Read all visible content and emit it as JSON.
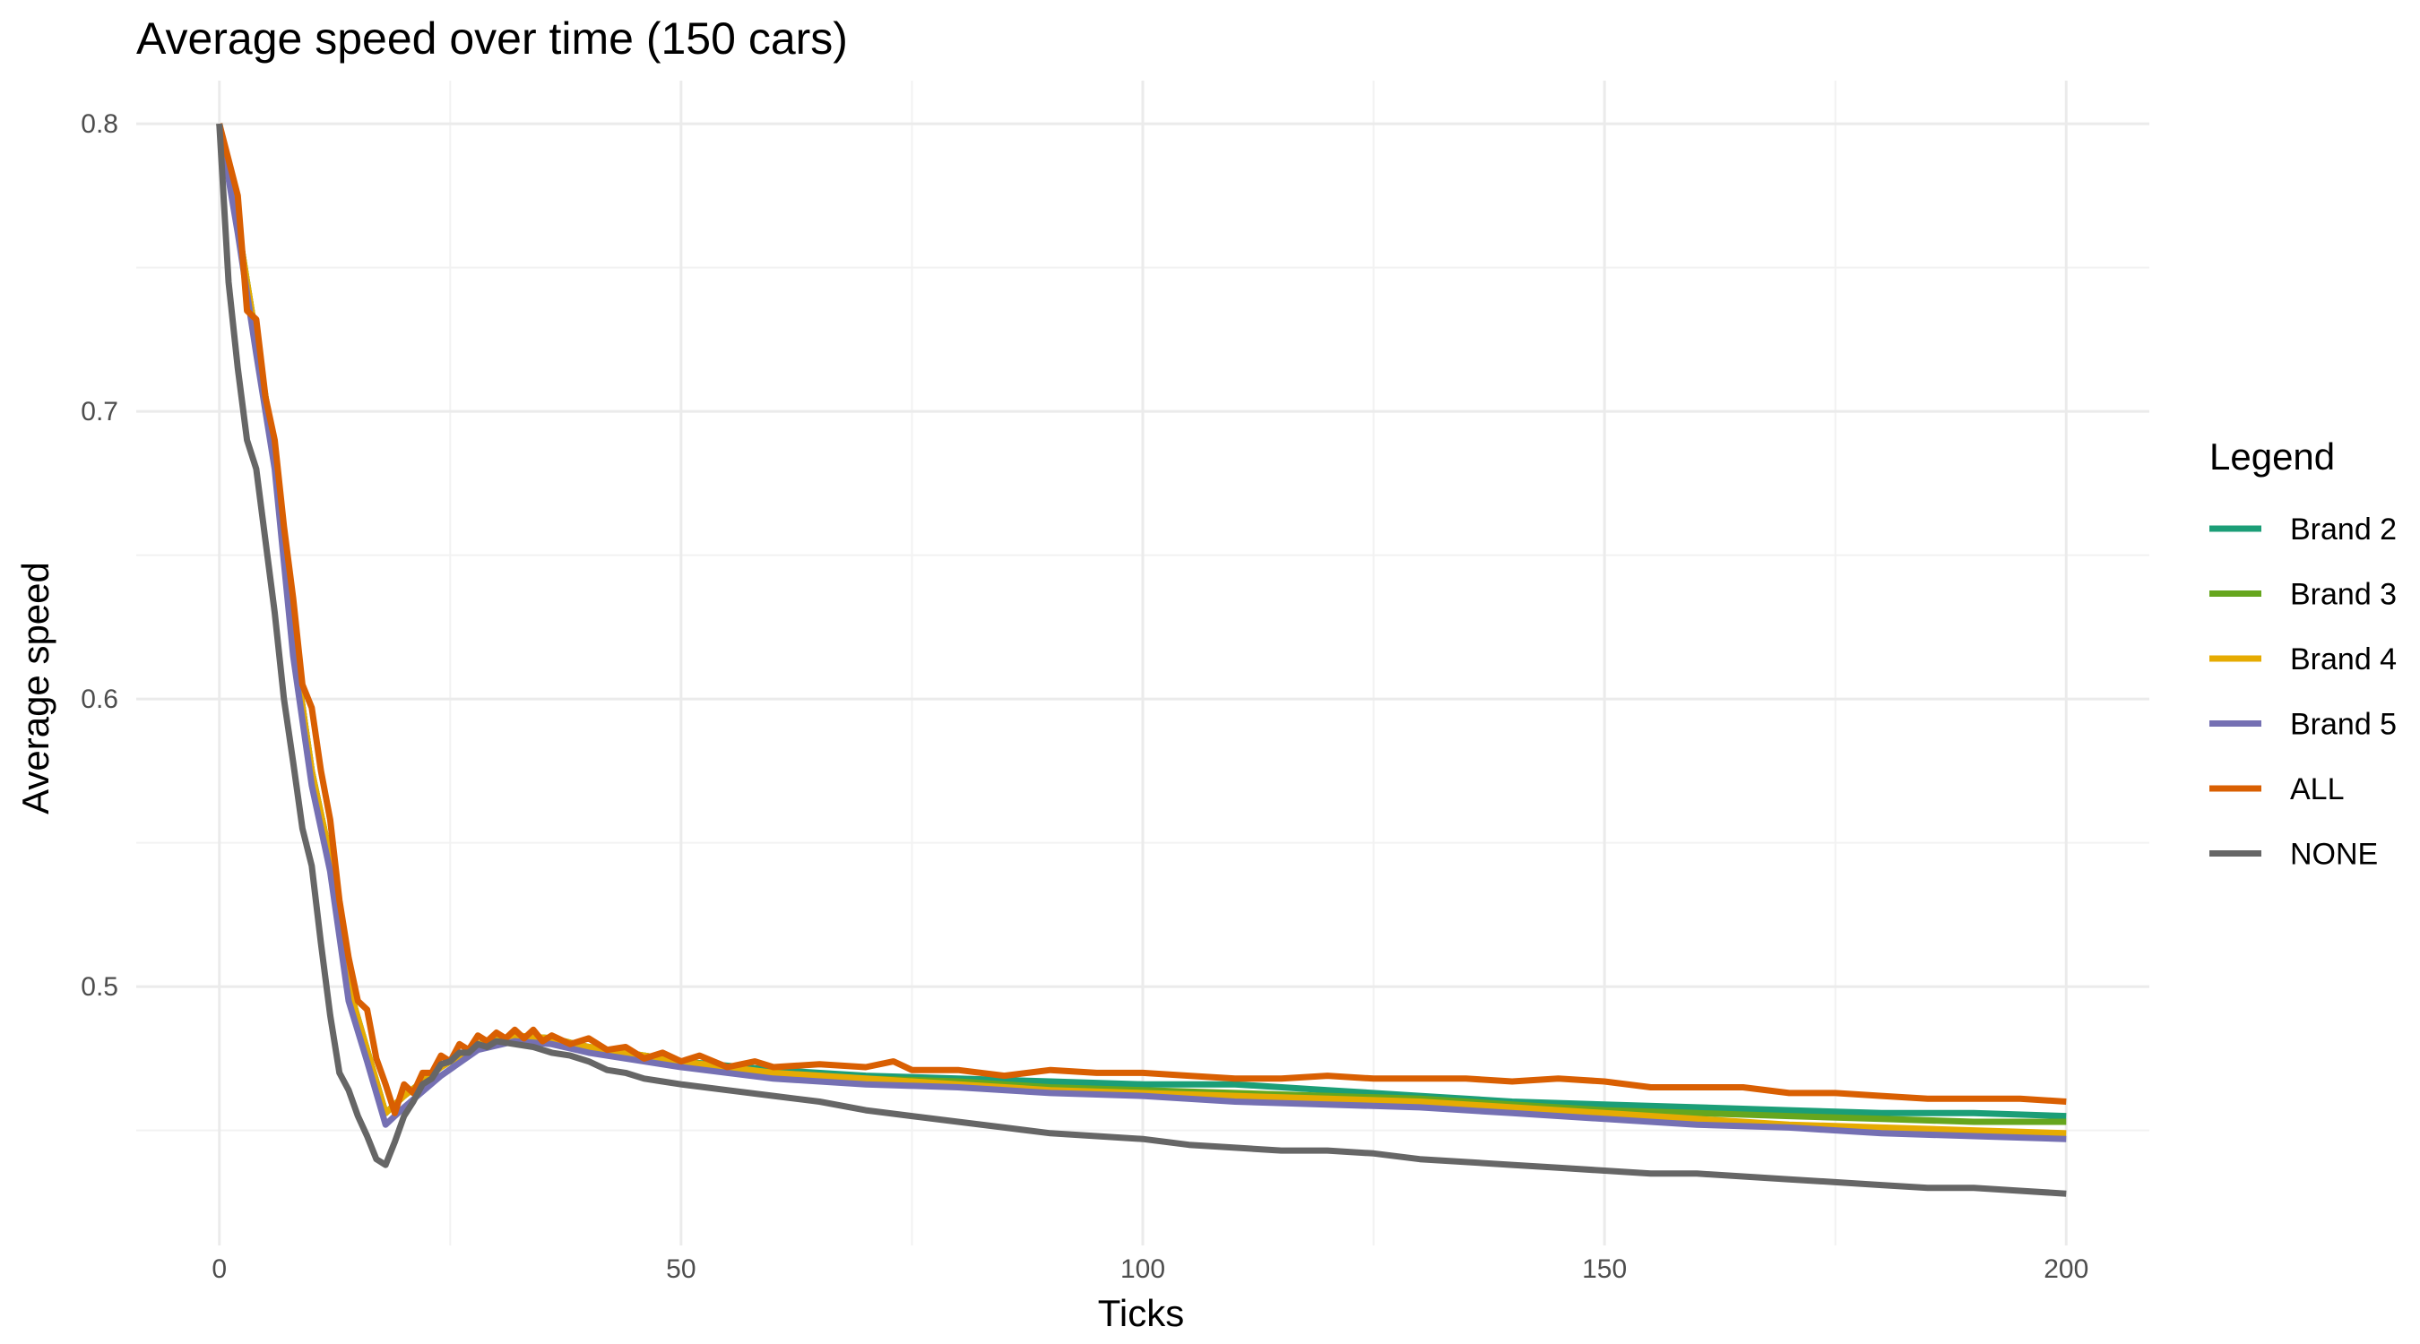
{
  "chart_data": {
    "type": "line",
    "title": "Average speed over time (150 cars)",
    "xlabel": "Ticks",
    "ylabel": "Average speed",
    "xlim": [
      -9,
      209
    ],
    "ylim": [
      0.41,
      0.815
    ],
    "x_ticks": [
      0,
      50,
      100,
      150,
      200
    ],
    "y_ticks": [
      0.5,
      0.6,
      0.7,
      0.8
    ],
    "x_tick_labels": [
      "0",
      "50",
      "100",
      "150",
      "200"
    ],
    "y_tick_labels": [
      "0.5",
      "0.6",
      "0.7",
      "0.8"
    ],
    "grid": true,
    "legend": {
      "title": "Legend",
      "position": "right"
    },
    "series": [
      {
        "name": "Brand 2",
        "color": "#1b9e77",
        "points": [
          [
            0,
            0.8
          ],
          [
            2,
            0.765
          ],
          [
            4,
            0.725
          ],
          [
            6,
            0.685
          ],
          [
            8,
            0.62
          ],
          [
            10,
            0.575
          ],
          [
            12,
            0.545
          ],
          [
            14,
            0.5
          ],
          [
            16,
            0.478
          ],
          [
            18,
            0.456
          ],
          [
            20,
            0.462
          ],
          [
            24,
            0.472
          ],
          [
            28,
            0.48
          ],
          [
            32,
            0.483
          ],
          [
            36,
            0.482
          ],
          [
            40,
            0.479
          ],
          [
            50,
            0.474
          ],
          [
            60,
            0.471
          ],
          [
            70,
            0.469
          ],
          [
            80,
            0.468
          ],
          [
            90,
            0.467
          ],
          [
            100,
            0.466
          ],
          [
            110,
            0.466
          ],
          [
            120,
            0.464
          ],
          [
            130,
            0.462
          ],
          [
            140,
            0.46
          ],
          [
            150,
            0.459
          ],
          [
            160,
            0.458
          ],
          [
            170,
            0.457
          ],
          [
            180,
            0.456
          ],
          [
            190,
            0.456
          ],
          [
            200,
            0.455
          ]
        ]
      },
      {
        "name": "Brand 3",
        "color": "#66a61e",
        "points": [
          [
            0,
            0.8
          ],
          [
            2,
            0.765
          ],
          [
            4,
            0.725
          ],
          [
            6,
            0.685
          ],
          [
            8,
            0.62
          ],
          [
            10,
            0.575
          ],
          [
            12,
            0.545
          ],
          [
            14,
            0.5
          ],
          [
            16,
            0.478
          ],
          [
            18,
            0.456
          ],
          [
            20,
            0.462
          ],
          [
            24,
            0.472
          ],
          [
            28,
            0.48
          ],
          [
            32,
            0.483
          ],
          [
            36,
            0.482
          ],
          [
            40,
            0.479
          ],
          [
            50,
            0.474
          ],
          [
            60,
            0.47
          ],
          [
            70,
            0.468
          ],
          [
            80,
            0.467
          ],
          [
            90,
            0.465
          ],
          [
            100,
            0.464
          ],
          [
            110,
            0.463
          ],
          [
            120,
            0.462
          ],
          [
            130,
            0.461
          ],
          [
            140,
            0.459
          ],
          [
            150,
            0.457
          ],
          [
            160,
            0.456
          ],
          [
            170,
            0.455
          ],
          [
            180,
            0.454
          ],
          [
            190,
            0.453
          ],
          [
            200,
            0.453
          ]
        ]
      },
      {
        "name": "Brand 4",
        "color": "#e6ab02",
        "points": [
          [
            0,
            0.8
          ],
          [
            2,
            0.765
          ],
          [
            4,
            0.725
          ],
          [
            6,
            0.685
          ],
          [
            8,
            0.62
          ],
          [
            10,
            0.575
          ],
          [
            12,
            0.545
          ],
          [
            14,
            0.5
          ],
          [
            16,
            0.478
          ],
          [
            18,
            0.456
          ],
          [
            20,
            0.462
          ],
          [
            24,
            0.472
          ],
          [
            28,
            0.48
          ],
          [
            32,
            0.483
          ],
          [
            36,
            0.482
          ],
          [
            40,
            0.479
          ],
          [
            50,
            0.474
          ],
          [
            60,
            0.47
          ],
          [
            70,
            0.468
          ],
          [
            80,
            0.466
          ],
          [
            90,
            0.464
          ],
          [
            100,
            0.463
          ],
          [
            110,
            0.462
          ],
          [
            120,
            0.461
          ],
          [
            130,
            0.46
          ],
          [
            140,
            0.458
          ],
          [
            150,
            0.456
          ],
          [
            160,
            0.454
          ],
          [
            170,
            0.452
          ],
          [
            180,
            0.451
          ],
          [
            190,
            0.45
          ],
          [
            200,
            0.449
          ]
        ]
      },
      {
        "name": "Brand 5",
        "color": "#7570b3",
        "points": [
          [
            0,
            0.8
          ],
          [
            2,
            0.762
          ],
          [
            4,
            0.72
          ],
          [
            6,
            0.68
          ],
          [
            8,
            0.615
          ],
          [
            10,
            0.57
          ],
          [
            12,
            0.54
          ],
          [
            14,
            0.495
          ],
          [
            16,
            0.474
          ],
          [
            18,
            0.452
          ],
          [
            20,
            0.458
          ],
          [
            24,
            0.469
          ],
          [
            28,
            0.478
          ],
          [
            32,
            0.481
          ],
          [
            36,
            0.48
          ],
          [
            40,
            0.477
          ],
          [
            50,
            0.472
          ],
          [
            60,
            0.468
          ],
          [
            70,
            0.466
          ],
          [
            80,
            0.465
          ],
          [
            90,
            0.463
          ],
          [
            100,
            0.462
          ],
          [
            110,
            0.46
          ],
          [
            120,
            0.459
          ],
          [
            130,
            0.458
          ],
          [
            140,
            0.456
          ],
          [
            150,
            0.454
          ],
          [
            160,
            0.452
          ],
          [
            170,
            0.451
          ],
          [
            180,
            0.449
          ],
          [
            190,
            0.448
          ],
          [
            200,
            0.447
          ]
        ]
      },
      {
        "name": "ALL",
        "color": "#d95f02",
        "points": [
          [
            0,
            0.8
          ],
          [
            2,
            0.775
          ],
          [
            3,
            0.735
          ],
          [
            4,
            0.732
          ],
          [
            5,
            0.705
          ],
          [
            6,
            0.69
          ],
          [
            7,
            0.66
          ],
          [
            8,
            0.635
          ],
          [
            9,
            0.605
          ],
          [
            10,
            0.597
          ],
          [
            11,
            0.575
          ],
          [
            12,
            0.558
          ],
          [
            13,
            0.53
          ],
          [
            14,
            0.51
          ],
          [
            15,
            0.495
          ],
          [
            16,
            0.492
          ],
          [
            17,
            0.475
          ],
          [
            18,
            0.466
          ],
          [
            19,
            0.456
          ],
          [
            20,
            0.466
          ],
          [
            21,
            0.463
          ],
          [
            22,
            0.47
          ],
          [
            23,
            0.47
          ],
          [
            24,
            0.476
          ],
          [
            25,
            0.474
          ],
          [
            26,
            0.48
          ],
          [
            27,
            0.478
          ],
          [
            28,
            0.483
          ],
          [
            29,
            0.481
          ],
          [
            30,
            0.484
          ],
          [
            31,
            0.482
          ],
          [
            32,
            0.485
          ],
          [
            33,
            0.482
          ],
          [
            34,
            0.485
          ],
          [
            35,
            0.481
          ],
          [
            36,
            0.483
          ],
          [
            38,
            0.48
          ],
          [
            40,
            0.482
          ],
          [
            42,
            0.478
          ],
          [
            44,
            0.479
          ],
          [
            46,
            0.475
          ],
          [
            48,
            0.477
          ],
          [
            50,
            0.474
          ],
          [
            52,
            0.476
          ],
          [
            55,
            0.472
          ],
          [
            58,
            0.474
          ],
          [
            60,
            0.472
          ],
          [
            65,
            0.473
          ],
          [
            70,
            0.472
          ],
          [
            73,
            0.474
          ],
          [
            75,
            0.471
          ],
          [
            80,
            0.471
          ],
          [
            85,
            0.469
          ],
          [
            90,
            0.471
          ],
          [
            95,
            0.47
          ],
          [
            100,
            0.47
          ],
          [
            105,
            0.469
          ],
          [
            110,
            0.468
          ],
          [
            115,
            0.468
          ],
          [
            120,
            0.469
          ],
          [
            125,
            0.468
          ],
          [
            130,
            0.468
          ],
          [
            135,
            0.468
          ],
          [
            140,
            0.467
          ],
          [
            145,
            0.468
          ],
          [
            150,
            0.467
          ],
          [
            155,
            0.465
          ],
          [
            160,
            0.465
          ],
          [
            165,
            0.465
          ],
          [
            170,
            0.463
          ],
          [
            175,
            0.463
          ],
          [
            180,
            0.462
          ],
          [
            185,
            0.461
          ],
          [
            190,
            0.461
          ],
          [
            195,
            0.461
          ],
          [
            200,
            0.46
          ]
        ]
      },
      {
        "name": "NONE",
        "color": "#666666",
        "points": [
          [
            0,
            0.8
          ],
          [
            1,
            0.745
          ],
          [
            2,
            0.715
          ],
          [
            3,
            0.69
          ],
          [
            4,
            0.68
          ],
          [
            5,
            0.655
          ],
          [
            6,
            0.63
          ],
          [
            7,
            0.6
          ],
          [
            8,
            0.578
          ],
          [
            9,
            0.555
          ],
          [
            10,
            0.542
          ],
          [
            11,
            0.515
          ],
          [
            12,
            0.49
          ],
          [
            13,
            0.47
          ],
          [
            14,
            0.464
          ],
          [
            15,
            0.455
          ],
          [
            16,
            0.448
          ],
          [
            17,
            0.44
          ],
          [
            18,
            0.438
          ],
          [
            19,
            0.446
          ],
          [
            20,
            0.455
          ],
          [
            21,
            0.46
          ],
          [
            22,
            0.466
          ],
          [
            23,
            0.468
          ],
          [
            24,
            0.473
          ],
          [
            25,
            0.474
          ],
          [
            26,
            0.477
          ],
          [
            27,
            0.477
          ],
          [
            28,
            0.48
          ],
          [
            29,
            0.479
          ],
          [
            30,
            0.481
          ],
          [
            32,
            0.48
          ],
          [
            34,
            0.479
          ],
          [
            36,
            0.477
          ],
          [
            38,
            0.476
          ],
          [
            40,
            0.474
          ],
          [
            42,
            0.471
          ],
          [
            44,
            0.47
          ],
          [
            46,
            0.468
          ],
          [
            48,
            0.467
          ],
          [
            50,
            0.466
          ],
          [
            55,
            0.464
          ],
          [
            60,
            0.462
          ],
          [
            65,
            0.46
          ],
          [
            70,
            0.457
          ],
          [
            75,
            0.455
          ],
          [
            80,
            0.453
          ],
          [
            85,
            0.451
          ],
          [
            90,
            0.449
          ],
          [
            95,
            0.448
          ],
          [
            100,
            0.447
          ],
          [
            105,
            0.445
          ],
          [
            110,
            0.444
          ],
          [
            115,
            0.443
          ],
          [
            120,
            0.443
          ],
          [
            125,
            0.442
          ],
          [
            130,
            0.44
          ],
          [
            135,
            0.439
          ],
          [
            140,
            0.438
          ],
          [
            145,
            0.437
          ],
          [
            150,
            0.436
          ],
          [
            155,
            0.435
          ],
          [
            160,
            0.435
          ],
          [
            165,
            0.434
          ],
          [
            170,
            0.433
          ],
          [
            175,
            0.432
          ],
          [
            180,
            0.431
          ],
          [
            185,
            0.43
          ],
          [
            190,
            0.43
          ],
          [
            195,
            0.429
          ],
          [
            200,
            0.428
          ]
        ]
      }
    ]
  }
}
